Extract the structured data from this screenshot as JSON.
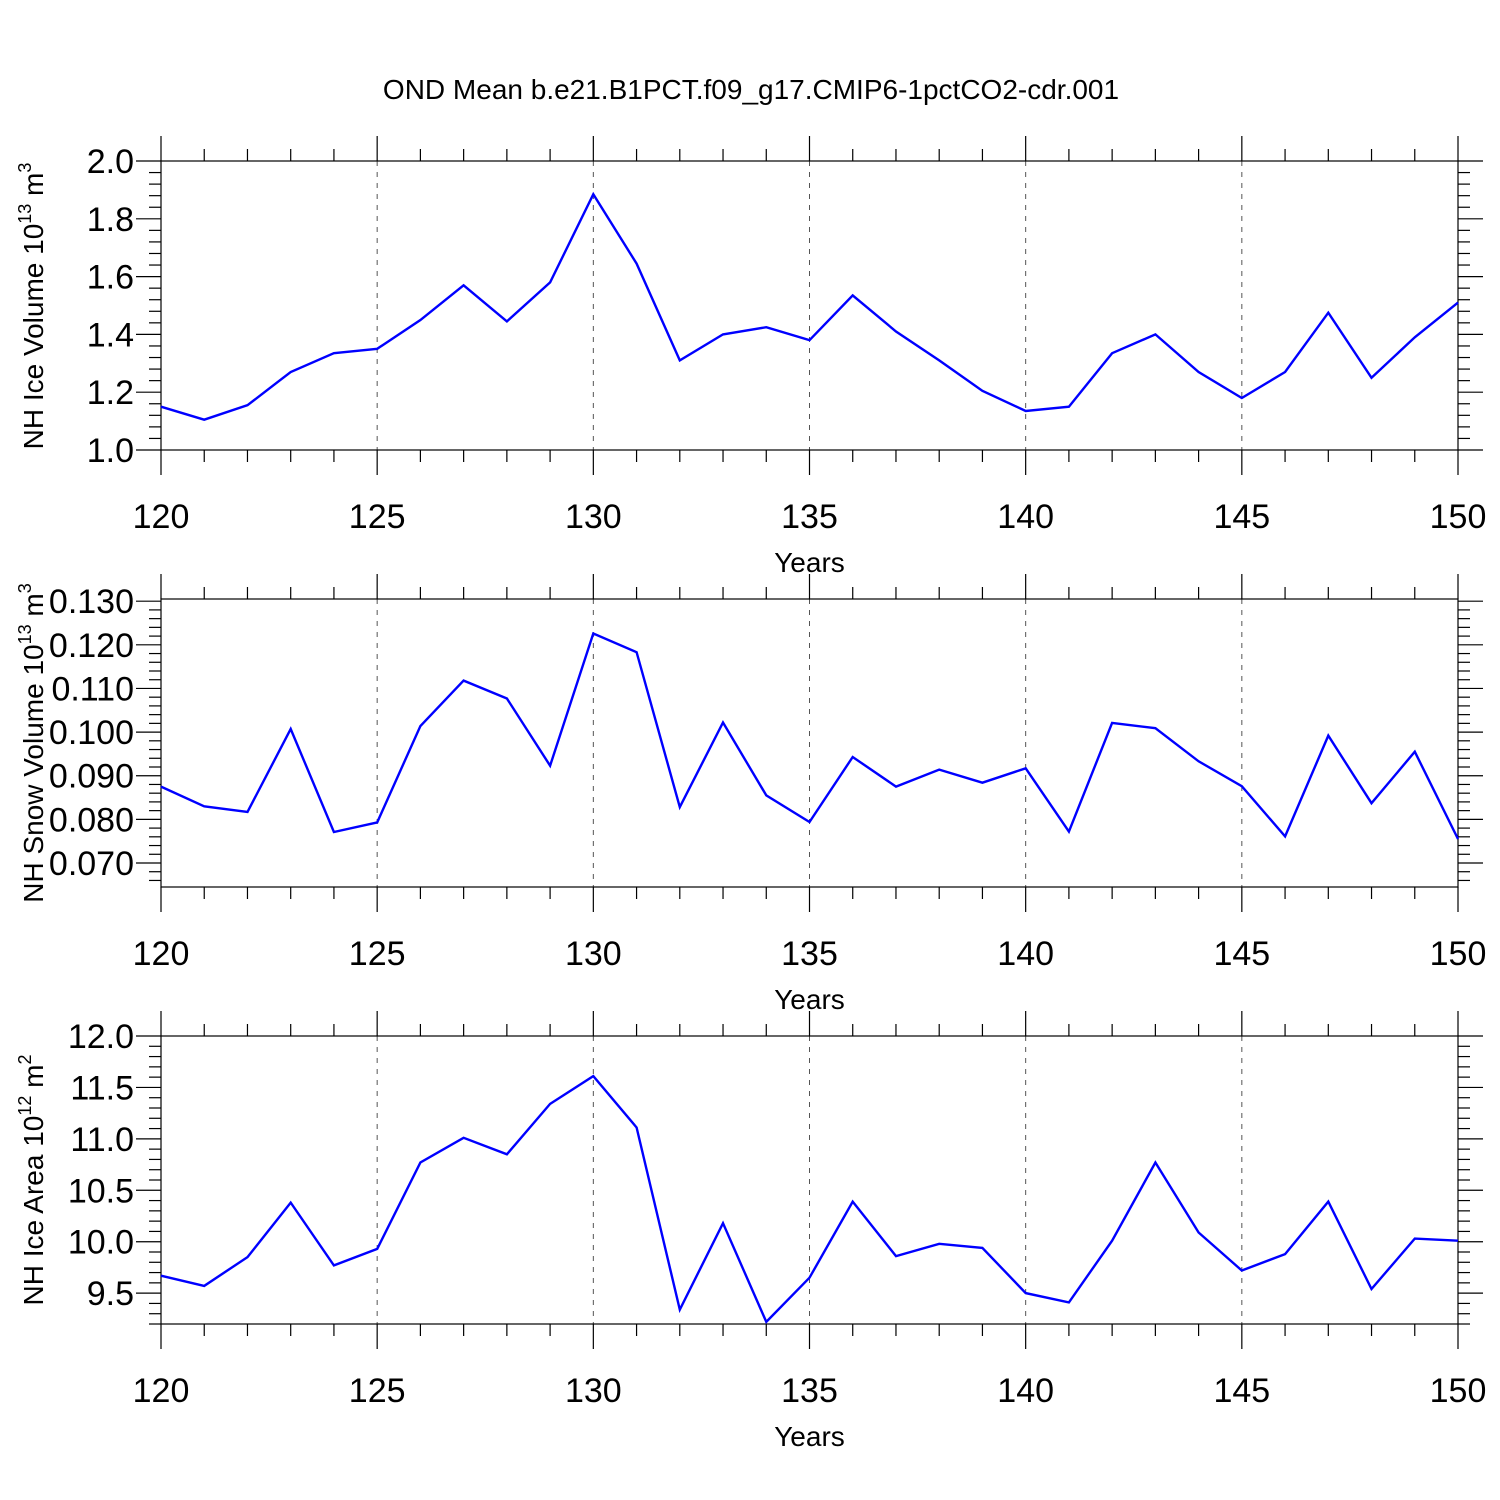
{
  "figure": {
    "title": "OND Mean b.e21.B1PCT.f09_g17.CMIP6-1pctCO2-cdr.001"
  },
  "chart_data": [
    {
      "type": "line",
      "title": "",
      "xlabel": "Years",
      "ylabel": "NH Ice Volume",
      "ylabel_unit_base": "10",
      "ylabel_unit_exp": "13",
      "ylabel_unit_suffix": " m",
      "ylabel_unit_suffix_exp": "3",
      "xlim": [
        120,
        150
      ],
      "ylim": [
        1.0,
        2.0
      ],
      "xticks": [
        120,
        125,
        130,
        135,
        140,
        145,
        150
      ],
      "xticklabels": [
        "120",
        "125",
        "130",
        "135",
        "140",
        "145",
        "150"
      ],
      "yticks": [
        1.0,
        1.2,
        1.4,
        1.6,
        1.8,
        2.0
      ],
      "yticklabels": [
        "1.0",
        "1.2",
        "1.4",
        "1.6",
        "1.8",
        "2.0"
      ],
      "yminor": 0.04,
      "grid": "vertical-dashed",
      "line_color": "#0000ff",
      "x": [
        120,
        121,
        122,
        123,
        124,
        125,
        126,
        127,
        128,
        129,
        130,
        131,
        132,
        133,
        134,
        135,
        136,
        137,
        138,
        139,
        140,
        141,
        142,
        143,
        144,
        145,
        146,
        147,
        148,
        149,
        150
      ],
      "values": [
        1.15,
        1.105,
        1.155,
        1.27,
        1.335,
        1.35,
        1.45,
        1.57,
        1.445,
        1.58,
        1.885,
        1.645,
        1.31,
        1.4,
        1.425,
        1.38,
        1.535,
        1.41,
        1.31,
        1.205,
        1.135,
        1.15,
        1.335,
        1.4,
        1.27,
        1.18,
        1.27,
        1.475,
        1.25,
        1.39,
        1.51
      ]
    },
    {
      "type": "line",
      "title": "",
      "xlabel": "Years",
      "ylabel": "NH Snow Volume",
      "ylabel_unit_base": "10",
      "ylabel_unit_exp": "13",
      "ylabel_unit_suffix": " m",
      "ylabel_unit_suffix_exp": "3",
      "xlim": [
        120,
        150
      ],
      "ylim": [
        0.0645,
        0.1305
      ],
      "xticks": [
        120,
        125,
        130,
        135,
        140,
        145,
        150
      ],
      "xticklabels": [
        "120",
        "125",
        "130",
        "135",
        "140",
        "145",
        "150"
      ],
      "yticks": [
        0.07,
        0.08,
        0.09,
        0.1,
        0.11,
        0.12,
        0.13
      ],
      "yticklabels": [
        "0.070",
        "0.080",
        "0.090",
        "0.100",
        "0.110",
        "0.120",
        "0.130"
      ],
      "yminor": 0.002,
      "grid": "vertical-dashed",
      "line_color": "#0000ff",
      "x": [
        120,
        121,
        122,
        123,
        124,
        125,
        126,
        127,
        128,
        129,
        130,
        131,
        132,
        133,
        134,
        135,
        136,
        137,
        138,
        139,
        140,
        141,
        142,
        143,
        144,
        145,
        146,
        147,
        148,
        149,
        150
      ],
      "values": [
        0.0875,
        0.083,
        0.0817,
        0.1007,
        0.0771,
        0.0793,
        0.1014,
        0.1118,
        0.1077,
        0.0923,
        0.1226,
        0.1183,
        0.0828,
        0.1022,
        0.0855,
        0.0794,
        0.0943,
        0.0875,
        0.0914,
        0.0884,
        0.0917,
        0.0772,
        0.1021,
        0.1009,
        0.0933,
        0.0876,
        0.0761,
        0.0992,
        0.0837,
        0.0955,
        0.0755
      ]
    },
    {
      "type": "line",
      "title": "",
      "xlabel": "Years",
      "ylabel": "NH Ice Area",
      "ylabel_unit_base": "10",
      "ylabel_unit_exp": "12",
      "ylabel_unit_suffix": " m",
      "ylabel_unit_suffix_exp": "2",
      "xlim": [
        120,
        150
      ],
      "ylim": [
        9.2,
        12.0
      ],
      "xticks": [
        120,
        125,
        130,
        135,
        140,
        145,
        150
      ],
      "xticklabels": [
        "120",
        "125",
        "130",
        "135",
        "140",
        "145",
        "150"
      ],
      "yticks": [
        9.5,
        10.0,
        10.5,
        11.0,
        11.5,
        12.0
      ],
      "yticklabels": [
        "9.5",
        "10.0",
        "10.5",
        "11.0",
        "11.5",
        "12.0"
      ],
      "yminor": 0.1,
      "grid": "vertical-dashed",
      "line_color": "#0000ff",
      "x": [
        120,
        121,
        122,
        123,
        124,
        125,
        126,
        127,
        128,
        129,
        130,
        131,
        132,
        133,
        134,
        135,
        136,
        137,
        138,
        139,
        140,
        141,
        142,
        143,
        144,
        145,
        146,
        147,
        148,
        149,
        150
      ],
      "values": [
        9.67,
        9.57,
        9.85,
        10.38,
        9.77,
        9.93,
        10.77,
        11.01,
        10.85,
        11.34,
        11.61,
        11.11,
        9.34,
        10.18,
        9.22,
        9.65,
        10.39,
        9.86,
        9.98,
        9.94,
        9.5,
        9.41,
        10.01,
        10.77,
        10.09,
        9.72,
        9.88,
        10.39,
        9.54,
        10.03,
        10.01
      ]
    }
  ]
}
